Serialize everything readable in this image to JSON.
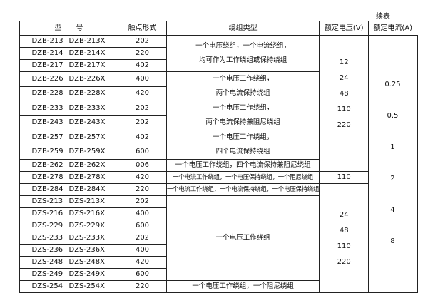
{
  "continued_label": "续表",
  "headers": [
    "型　　号",
    "触点形式",
    "绕组类型",
    "额定电压(V)",
    "额定电流(A)"
  ],
  "rows": [
    {
      "model": "DZB-213",
      "model_x": "DZB-213X",
      "contact": "202"
    },
    {
      "model": "DZB-214",
      "model_x": "DZB-214X",
      "contact": "220"
    },
    {
      "model": "DZB-217",
      "model_x": "DZB-217X",
      "contact": "402"
    },
    {
      "model": "DZB-226",
      "model_x": "DZB-226X",
      "contact": "400"
    },
    {
      "model": "DZB-228",
      "model_x": "DZB-228X",
      "contact": "420"
    },
    {
      "model": "DZB-233",
      "model_x": "DZB-233X",
      "contact": "202"
    },
    {
      "model": "DZB-243",
      "model_x": "DZB-243X",
      "contact": "202"
    },
    {
      "model": "DZB-257",
      "model_x": "DZB-257X",
      "contact": "402"
    },
    {
      "model": "DZB-259",
      "model_x": "DZB-259X",
      "contact": "600"
    },
    {
      "model": "DZB-262",
      "model_x": "DZB-262X",
      "contact": "006"
    },
    {
      "model": "DZB-278",
      "model_x": "DZB-278X",
      "contact": "420"
    },
    {
      "model": "DZB-284",
      "model_x": "DZB-284X",
      "contact": "220"
    },
    {
      "model": "DZS-213",
      "model_x": "DZS-213X",
      "contact": "202"
    },
    {
      "model": "DZS-216",
      "model_x": "DZS-216X",
      "contact": "400"
    },
    {
      "model": "DZS-229",
      "model_x": "DZS-229X",
      "contact": "600"
    },
    {
      "model": "DZS-233",
      "model_x": "DZS-233X",
      "contact": "202"
    },
    {
      "model": "DZS-236",
      "model_x": "DZS-236X",
      "contact": "400"
    },
    {
      "model": "DZS-248",
      "model_x": "DZS-248X",
      "contact": "420"
    },
    {
      "model": "DZS-249",
      "model_x": "DZS-249X",
      "contact": "600"
    },
    {
      "model": "DZS-254",
      "model_x": "DZS-254X",
      "contact": "220"
    }
  ],
  "windings": [
    {
      "start": 0,
      "span": 3,
      "lines": [
        "一个电压绕组，一个电流绕组，",
        "均可作为工作绕组或保持绕组"
      ]
    },
    {
      "start": 3,
      "span": 2,
      "lines": [
        "一个电压工作绕组，",
        "两个电流保持绕组"
      ]
    },
    {
      "start": 5,
      "span": 2,
      "lines": [
        "一个电压工作绕组，",
        "两个电流保持兼阻尼绕组"
      ]
    },
    {
      "start": 7,
      "span": 2,
      "lines": [
        "一个电压工作绕组，",
        "四个电流保持绕组"
      ]
    },
    {
      "start": 9,
      "span": 1,
      "lines": [
        "一个电压工作绕组，四个电流保持兼阻尼绕组"
      ]
    },
    {
      "start": 10,
      "span": 1,
      "lines": [
        "一个电流工作绕组，一个电压保持绕组，一个阻尼绕组"
      ],
      "small": true
    },
    {
      "start": 11,
      "span": 1,
      "lines": [
        "一个电流工作绕组，一个电流保持绕组，一个电压保持绕组"
      ],
      "small": true
    },
    {
      "start": 12,
      "span": 7,
      "lines": [
        "一个电压工作绕组"
      ]
    },
    {
      "start": 19,
      "span": 1,
      "lines": [
        "一个电压工作绕组，一个阻尼绕组"
      ]
    }
  ],
  "voltages": [
    {
      "start": 0,
      "span": 10,
      "values": [
        "12",
        "24",
        "48",
        "110",
        "220"
      ]
    },
    {
      "start": 10,
      "span": 1,
      "values": [
        "110"
      ]
    },
    {
      "start": 11,
      "span": 9,
      "values": [
        "24",
        "48",
        "110",
        "220"
      ]
    }
  ],
  "currents": [
    "0.25",
    "0.5",
    "1",
    "2",
    "4",
    "8"
  ]
}
